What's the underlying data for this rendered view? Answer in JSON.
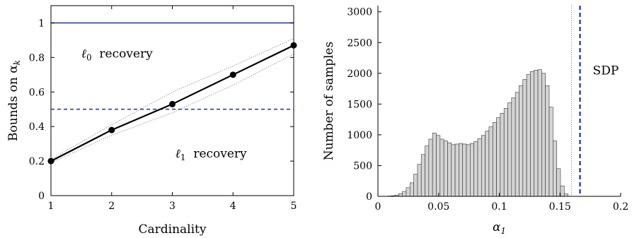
{
  "chart_data": [
    {
      "type": "line",
      "xlabel": "Cardinality",
      "ylabel": "Bounds on α",
      "ylabel_sub": "k",
      "xlim": [
        1,
        5
      ],
      "ylim": [
        0,
        1.1
      ],
      "xticks": [
        "1",
        "2",
        "3",
        "4",
        "5"
      ],
      "yticks": [
        "0",
        "0.2",
        "0.4",
        "0.6",
        "0.8",
        "1"
      ],
      "colors": {
        "axes": "#000000",
        "bound": "#2f3fa0",
        "dotted": "#555555"
      },
      "series": [
        {
          "x": [
            1,
            2,
            3,
            4,
            5
          ],
          "y": [
            0.2,
            0.38,
            0.53,
            0.7,
            0.87
          ],
          "style": "solid-markers"
        },
        {
          "x": [
            1,
            2,
            3,
            4,
            5
          ],
          "y": [
            0.21,
            0.41,
            0.6,
            0.75,
            0.91
          ],
          "style": "dotted"
        },
        {
          "x": [
            1,
            2,
            3,
            4,
            5
          ],
          "y": [
            0.19,
            0.35,
            0.48,
            0.64,
            0.82
          ],
          "style": "dotted"
        }
      ],
      "hlines": [
        {
          "y": 1.0,
          "style": "solid"
        },
        {
          "y": 0.5,
          "style": "dashed"
        }
      ],
      "annotations": [
        {
          "symbol": "ℓ",
          "sub": "0",
          "text": "recovery",
          "x": 1.5,
          "y": 0.8
        },
        {
          "symbol": "ℓ",
          "sub": "1",
          "text": "recovery",
          "x": 3.05,
          "y": 0.22
        }
      ]
    },
    {
      "type": "bar",
      "xlabel": "α",
      "xlabel_sub": "1",
      "ylabel": "Number of samples",
      "xlim": [
        0,
        0.2
      ],
      "ylim": [
        0,
        3100
      ],
      "xticks": [
        "0",
        "0.05",
        "0.1",
        "0.15",
        "0.2"
      ],
      "yticks": [
        "0",
        "500",
        "1000",
        "1500",
        "2000",
        "2500",
        "3000"
      ],
      "bin_width": 0.0031,
      "bin_start": 0.0078,
      "colors": {
        "bar": "#d4d4d4",
        "edge": "#333333",
        "sdp": "#2f3fa0",
        "red": "#d05050"
      },
      "counts": [
        5,
        10,
        20,
        45,
        80,
        140,
        220,
        360,
        520,
        680,
        820,
        930,
        1030,
        990,
        930,
        900,
        870,
        840,
        850,
        860,
        850,
        840,
        860,
        890,
        940,
        990,
        1060,
        1130,
        1200,
        1280,
        1350,
        1430,
        1520,
        1600,
        1690,
        1800,
        1900,
        1980,
        2030,
        2050,
        2060,
        2000,
        1800,
        1450,
        900,
        450,
        170,
        40
      ],
      "vlines": [
        {
          "x": 0.1595,
          "style": "dotted-red"
        },
        {
          "x": 0.1665,
          "style": "dashed"
        }
      ],
      "annotations": [
        {
          "text": "SDP",
          "x": 0.177,
          "y": 1980
        }
      ]
    }
  ]
}
